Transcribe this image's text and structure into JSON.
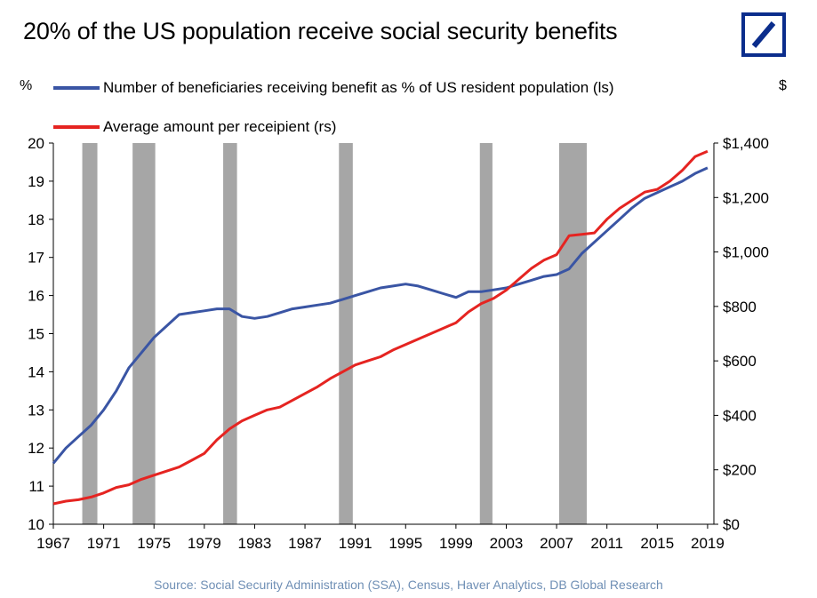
{
  "title": "20% of the US population receive social security benefits",
  "logo_icon": "deutsche-bank-logo",
  "colors": {
    "blue_series": "#3a55a4",
    "red_series": "#e52421",
    "recession": "#a6a6a6",
    "logo": "#0b2d8c",
    "source_text": "#6f8fb5"
  },
  "chart_data": {
    "type": "line",
    "title": "20% of the US population receive social security benefits",
    "y_left_label": "%",
    "y_right_label": "$",
    "ylim_left": [
      10,
      20
    ],
    "ylim_right": [
      0,
      1400
    ],
    "xlim": [
      1967,
      2019.5
    ],
    "x_ticks": [
      "1967",
      "1971",
      "1975",
      "1979",
      "1983",
      "1987",
      "1991",
      "1995",
      "1999",
      "2003",
      "2007",
      "2011",
      "2015",
      "2019"
    ],
    "y_left_ticks": [
      "10",
      "11",
      "12",
      "13",
      "14",
      "15",
      "16",
      "17",
      "18",
      "19",
      "20"
    ],
    "y_right_ticks": [
      "$0",
      "$200",
      "$400",
      "$600",
      "$800",
      "$1,000",
      "$1,200",
      "$1,400"
    ],
    "recessions": [
      [
        1969.3,
        1970.5
      ],
      [
        1973.3,
        1975.1
      ],
      [
        1980.5,
        1981.6
      ],
      [
        1989.7,
        1990.8
      ],
      [
        2000.9,
        2001.9
      ],
      [
        2007.2,
        2009.4
      ]
    ],
    "series": [
      {
        "name": "Number of beneficiaries receiving benefit as % of US resident population (ls)",
        "axis": "left",
        "x": [
          1967,
          1968,
          1969,
          1970,
          1971,
          1972,
          1973,
          1974,
          1975,
          1976,
          1977,
          1978,
          1979,
          1980,
          1981,
          1982,
          1983,
          1984,
          1985,
          1986,
          1987,
          1988,
          1989,
          1990,
          1991,
          1992,
          1993,
          1994,
          1995,
          1996,
          1997,
          1998,
          1999,
          2000,
          2001,
          2002,
          2003,
          2004,
          2005,
          2006,
          2007,
          2008,
          2009,
          2010,
          2011,
          2012,
          2013,
          2014,
          2015,
          2016,
          2017,
          2018,
          2019
        ],
        "values": [
          11.6,
          12.0,
          12.3,
          12.6,
          13.0,
          13.5,
          14.1,
          14.5,
          14.9,
          15.2,
          15.5,
          15.55,
          15.6,
          15.65,
          15.65,
          15.45,
          15.4,
          15.45,
          15.55,
          15.65,
          15.7,
          15.75,
          15.8,
          15.9,
          16.0,
          16.1,
          16.2,
          16.25,
          16.3,
          16.25,
          16.15,
          16.05,
          15.95,
          16.1,
          16.1,
          16.15,
          16.2,
          16.3,
          16.4,
          16.5,
          16.55,
          16.7,
          17.1,
          17.4,
          17.7,
          18.0,
          18.3,
          18.55,
          18.7,
          18.85,
          19.0,
          19.2,
          19.35
        ]
      },
      {
        "name": "Average amount per receipient (rs)",
        "axis": "right",
        "x": [
          1967,
          1968,
          1969,
          1970,
          1971,
          1972,
          1973,
          1974,
          1975,
          1976,
          1977,
          1978,
          1979,
          1980,
          1981,
          1982,
          1983,
          1984,
          1985,
          1986,
          1987,
          1988,
          1989,
          1990,
          1991,
          1992,
          1993,
          1994,
          1995,
          1996,
          1997,
          1998,
          1999,
          2000,
          2001,
          2002,
          2003,
          2004,
          2005,
          2006,
          2007,
          2008,
          2009,
          2010,
          2011,
          2012,
          2013,
          2014,
          2015,
          2016,
          2017,
          2018,
          2019
        ],
        "values": [
          75,
          85,
          90,
          100,
          115,
          135,
          145,
          165,
          180,
          195,
          210,
          235,
          260,
          310,
          350,
          380,
          400,
          420,
          430,
          455,
          480,
          505,
          535,
          560,
          585,
          600,
          615,
          640,
          660,
          680,
          700,
          720,
          740,
          780,
          810,
          830,
          860,
          900,
          940,
          970,
          990,
          1060,
          1065,
          1070,
          1120,
          1160,
          1190,
          1220,
          1230,
          1260,
          1300,
          1350,
          1370
        ]
      }
    ]
  },
  "source": "Source: Social Security Administration (SSA), Census, Haver Analytics, DB Global Research"
}
